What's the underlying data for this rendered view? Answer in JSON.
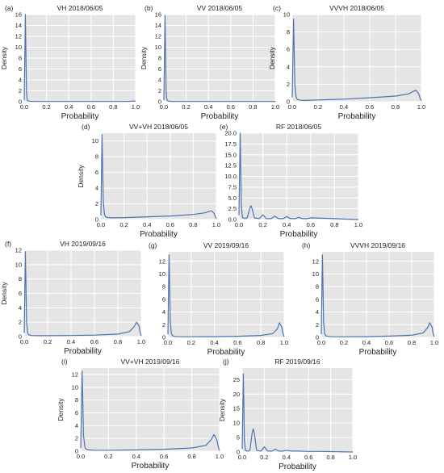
{
  "chart_data": [
    {
      "panel_label": "(a)",
      "title": "VH 2018/06/05",
      "type": "line",
      "xlabel": "Probability",
      "ylabel": "Density",
      "xlim": [
        0,
        1.0
      ],
      "ylim": [
        0,
        16
      ],
      "xtick_labels": [
        "0.0",
        "0.2",
        "0.4",
        "0.6",
        "0.8",
        "1.0"
      ],
      "yticks": [
        0,
        2,
        4,
        6,
        8,
        10,
        12,
        14,
        16
      ],
      "ytick_labels": [
        "0",
        "2",
        "4",
        "6",
        "8",
        "10",
        "12",
        "14",
        "16"
      ],
      "grid": true,
      "line_color": "#4c72b0",
      "x": [
        0.0,
        0.005,
        0.01,
        0.015,
        0.02,
        0.025,
        0.03,
        0.04,
        0.06,
        0.1,
        0.2,
        0.4,
        0.6,
        0.8,
        0.9,
        0.95,
        0.98,
        1.0
      ],
      "y": [
        0.3,
        8.0,
        16.0,
        9.0,
        2.0,
        0.6,
        0.25,
        0.12,
        0.08,
        0.05,
        0.05,
        0.05,
        0.05,
        0.05,
        0.05,
        0.08,
        0.12,
        0.1
      ]
    },
    {
      "panel_label": "(b)",
      "title": "VV 2018/06/05",
      "type": "line",
      "xlabel": "Probability",
      "ylabel": "Density",
      "xlim": [
        0,
        1.0
      ],
      "ylim": [
        0,
        16
      ],
      "xtick_labels": [
        "0.0",
        "0.2",
        "0.4",
        "0.6",
        "0.8",
        "1.0"
      ],
      "yticks": [
        0,
        2,
        4,
        6,
        8,
        10,
        12,
        14,
        16
      ],
      "ytick_labels": [
        "0",
        "2",
        "4",
        "6",
        "8",
        "10",
        "12",
        "14",
        "16"
      ],
      "grid": true,
      "line_color": "#4c72b0",
      "x": [
        0.0,
        0.005,
        0.01,
        0.015,
        0.02,
        0.025,
        0.03,
        0.04,
        0.06,
        0.1,
        0.2,
        0.4,
        0.6,
        0.8,
        0.9,
        0.95,
        0.98,
        1.0
      ],
      "y": [
        0.3,
        8.0,
        15.8,
        9.0,
        2.0,
        0.6,
        0.25,
        0.1,
        0.05,
        0.04,
        0.04,
        0.04,
        0.04,
        0.04,
        0.04,
        0.04,
        0.03,
        0.02
      ]
    },
    {
      "panel_label": "(c)",
      "title": "VVVH 2018/06/05",
      "type": "line",
      "xlabel": "Probability",
      "ylabel": "Density",
      "xlim": [
        0,
        1.0
      ],
      "ylim": [
        0,
        10
      ],
      "xtick_labels": [
        "0.0",
        "0.2",
        "0.4",
        "0.6",
        "0.8",
        "1.0"
      ],
      "yticks": [
        0,
        2,
        4,
        6,
        8,
        10
      ],
      "ytick_labels": [
        "0",
        "2",
        "4",
        "6",
        "8",
        "10"
      ],
      "grid": true,
      "line_color": "#4c72b0",
      "x": [
        0.0,
        0.005,
        0.01,
        0.015,
        0.02,
        0.03,
        0.04,
        0.06,
        0.1,
        0.2,
        0.4,
        0.6,
        0.8,
        0.9,
        0.94,
        0.96,
        0.98,
        0.99,
        1.0
      ],
      "y": [
        0.5,
        5.0,
        9.5,
        6.0,
        2.0,
        0.5,
        0.25,
        0.18,
        0.15,
        0.2,
        0.3,
        0.45,
        0.65,
        0.9,
        1.2,
        1.3,
        0.9,
        0.4,
        0.1
      ]
    },
    {
      "panel_label": "(d)",
      "title": "VV+VH 2018/06/05",
      "type": "line",
      "xlabel": "Probability",
      "ylabel": "Density",
      "xlim": [
        0,
        1.0
      ],
      "ylim": [
        0,
        11
      ],
      "xtick_labels": [
        "0.0",
        "0.2",
        "0.4",
        "0.6",
        "0.8",
        "1.0"
      ],
      "yticks": [
        0,
        2,
        4,
        6,
        8,
        10
      ],
      "ytick_labels": [
        "0",
        "2",
        "4",
        "6",
        "8",
        "10"
      ],
      "grid": true,
      "line_color": "#4c72b0",
      "x": [
        0.0,
        0.005,
        0.01,
        0.015,
        0.02,
        0.03,
        0.04,
        0.06,
        0.1,
        0.2,
        0.4,
        0.6,
        0.8,
        0.9,
        0.94,
        0.96,
        0.98,
        0.99,
        1.0
      ],
      "y": [
        0.5,
        6.0,
        10.8,
        7.0,
        2.5,
        0.7,
        0.35,
        0.25,
        0.22,
        0.25,
        0.35,
        0.45,
        0.65,
        0.85,
        1.05,
        1.1,
        0.8,
        0.4,
        0.1
      ]
    },
    {
      "panel_label": "(e)",
      "title": "RF 2018/06/05",
      "type": "line",
      "xlabel": "Probability",
      "ylabel": "",
      "xlim": [
        0,
        1.0
      ],
      "ylim": [
        0,
        20
      ],
      "xtick_labels": [
        "0.0",
        "0.2",
        "0.4",
        "0.6",
        "0.8",
        "1.0"
      ],
      "yticks": [
        0,
        2.5,
        5,
        7.5,
        10,
        12.5,
        15,
        17.5,
        20
      ],
      "ytick_labels": [
        "0.0",
        "2.5",
        "5.0",
        "7.5",
        "10.0",
        "12.5",
        "15.0",
        "17.5",
        "20.0"
      ],
      "grid": true,
      "line_color": "#4c72b0",
      "x": [
        0.0,
        0.005,
        0.01,
        0.015,
        0.02,
        0.03,
        0.05,
        0.07,
        0.09,
        0.1,
        0.11,
        0.13,
        0.17,
        0.2,
        0.23,
        0.27,
        0.3,
        0.33,
        0.37,
        0.4,
        0.43,
        0.47,
        0.5,
        0.53,
        0.57,
        0.6,
        0.7,
        0.8,
        0.9,
        1.0
      ],
      "y": [
        1.0,
        10.0,
        20.0,
        12.0,
        3.0,
        0.5,
        0.2,
        0.5,
        2.5,
        3.2,
        2.5,
        0.4,
        0.2,
        1.1,
        0.2,
        0.2,
        0.8,
        0.2,
        0.2,
        0.7,
        0.2,
        0.2,
        0.5,
        0.2,
        0.2,
        0.4,
        0.3,
        0.2,
        0.1,
        0.0
      ]
    },
    {
      "panel_label": "(f)",
      "title": "VH 2019/09/16",
      "type": "line",
      "xlabel": "Probability",
      "ylabel": "Density",
      "xlim": [
        0,
        1.0
      ],
      "ylim": [
        0,
        12
      ],
      "xtick_labels": [
        "0.0",
        "0.2",
        "0.4",
        "0.6",
        "0.8",
        "1.0"
      ],
      "yticks": [
        0,
        2,
        4,
        6,
        8,
        10,
        12
      ],
      "ytick_labels": [
        "0",
        "2",
        "4",
        "6",
        "8",
        "10",
        "12"
      ],
      "grid": true,
      "line_color": "#4c72b0",
      "x": [
        0.0,
        0.005,
        0.01,
        0.015,
        0.02,
        0.03,
        0.04,
        0.06,
        0.1,
        0.2,
        0.4,
        0.6,
        0.8,
        0.9,
        0.94,
        0.96,
        0.98,
        0.99,
        1.0
      ],
      "y": [
        0.5,
        6.0,
        11.8,
        7.0,
        2.0,
        0.5,
        0.25,
        0.15,
        0.12,
        0.12,
        0.15,
        0.2,
        0.35,
        0.7,
        1.4,
        2.0,
        1.5,
        0.6,
        0.1
      ]
    },
    {
      "panel_label": "(g)",
      "title": "VV 2019/09/16",
      "type": "line",
      "xlabel": "Probability",
      "ylabel": "",
      "xlim": [
        0,
        1.0
      ],
      "ylim": [
        0,
        13.5
      ],
      "xtick_labels": [
        "0.0",
        "0.2",
        "0.4",
        "0.6",
        "0.8",
        "1.0"
      ],
      "yticks": [
        0,
        2,
        4,
        6,
        8,
        10,
        12
      ],
      "ytick_labels": [
        "0",
        "2",
        "4",
        "6",
        "8",
        "10",
        "12"
      ],
      "grid": true,
      "line_color": "#4c72b0",
      "x": [
        0.0,
        0.005,
        0.01,
        0.015,
        0.02,
        0.03,
        0.04,
        0.06,
        0.1,
        0.2,
        0.4,
        0.6,
        0.8,
        0.9,
        0.94,
        0.96,
        0.98,
        0.99,
        1.0
      ],
      "y": [
        0.5,
        7.0,
        13.0,
        8.0,
        2.5,
        0.6,
        0.25,
        0.15,
        0.1,
        0.1,
        0.12,
        0.18,
        0.3,
        0.6,
        1.3,
        2.3,
        1.6,
        0.6,
        0.1
      ]
    },
    {
      "panel_label": "(h)",
      "title": "VVVH 2019/09/16",
      "type": "line",
      "xlabel": "Probability",
      "ylabel": "",
      "xlim": [
        0,
        1.0
      ],
      "ylim": [
        0,
        13.5
      ],
      "xtick_labels": [
        "0.0",
        "0.2",
        "0.4",
        "0.6",
        "0.8",
        "1.0"
      ],
      "yticks": [
        0,
        2,
        4,
        6,
        8,
        10,
        12
      ],
      "ytick_labels": [
        "0",
        "2",
        "4",
        "6",
        "8",
        "10",
        "12"
      ],
      "grid": true,
      "line_color": "#4c72b0",
      "x": [
        0.0,
        0.005,
        0.01,
        0.015,
        0.02,
        0.03,
        0.04,
        0.06,
        0.1,
        0.2,
        0.4,
        0.6,
        0.8,
        0.9,
        0.94,
        0.96,
        0.98,
        0.99,
        1.0
      ],
      "y": [
        0.5,
        7.0,
        13.0,
        8.0,
        2.5,
        0.6,
        0.25,
        0.15,
        0.1,
        0.1,
        0.12,
        0.2,
        0.35,
        0.7,
        1.5,
        2.3,
        1.6,
        0.6,
        0.1
      ]
    },
    {
      "panel_label": "(i)",
      "title": "VV+VH 2019/09/16",
      "type": "line",
      "xlabel": "Probability",
      "ylabel": "Density",
      "xlim": [
        0,
        1.0
      ],
      "ylim": [
        0,
        13
      ],
      "xtick_labels": [
        "0.0",
        "0.2",
        "0.4",
        "0.6",
        "0.8",
        "1.0"
      ],
      "yticks": [
        0,
        2,
        4,
        6,
        8,
        10,
        12
      ],
      "ytick_labels": [
        "0",
        "2",
        "4",
        "6",
        "8",
        "10",
        "12"
      ],
      "grid": true,
      "line_color": "#4c72b0",
      "x": [
        0.0,
        0.005,
        0.01,
        0.015,
        0.02,
        0.03,
        0.04,
        0.06,
        0.1,
        0.2,
        0.4,
        0.6,
        0.8,
        0.9,
        0.94,
        0.96,
        0.98,
        0.99,
        1.0
      ],
      "y": [
        0.5,
        7.0,
        12.5,
        7.5,
        2.5,
        0.6,
        0.3,
        0.2,
        0.15,
        0.15,
        0.2,
        0.3,
        0.5,
        0.9,
        1.8,
        2.6,
        1.8,
        0.7,
        0.1
      ]
    },
    {
      "panel_label": "(j)",
      "title": "RF 2019/09/16",
      "type": "line",
      "xlabel": "Probability",
      "ylabel": "Density",
      "xlim": [
        0,
        1.0
      ],
      "ylim": [
        0,
        29
      ],
      "xtick_labels": [
        "0.0",
        "0.2",
        "0.4",
        "0.6",
        "0.8",
        "1.0"
      ],
      "yticks": [
        0,
        5,
        10,
        15,
        20,
        25
      ],
      "ytick_labels": [
        "0",
        "5",
        "10",
        "15",
        "20",
        "25"
      ],
      "grid": true,
      "line_color": "#4c72b0",
      "x": [
        0.0,
        0.005,
        0.01,
        0.015,
        0.02,
        0.03,
        0.05,
        0.07,
        0.09,
        0.1,
        0.11,
        0.13,
        0.17,
        0.2,
        0.23,
        0.27,
        0.3,
        0.33,
        0.37,
        0.4,
        0.45,
        0.5,
        0.6,
        0.7,
        0.8,
        1.0
      ],
      "y": [
        1.0,
        14.0,
        27.0,
        16.0,
        4.0,
        0.5,
        0.3,
        0.6,
        6.5,
        8.0,
        6.5,
        0.6,
        0.3,
        1.8,
        0.3,
        0.3,
        1.0,
        0.3,
        0.3,
        0.6,
        0.3,
        0.3,
        0.2,
        0.2,
        0.15,
        0.0
      ]
    }
  ]
}
